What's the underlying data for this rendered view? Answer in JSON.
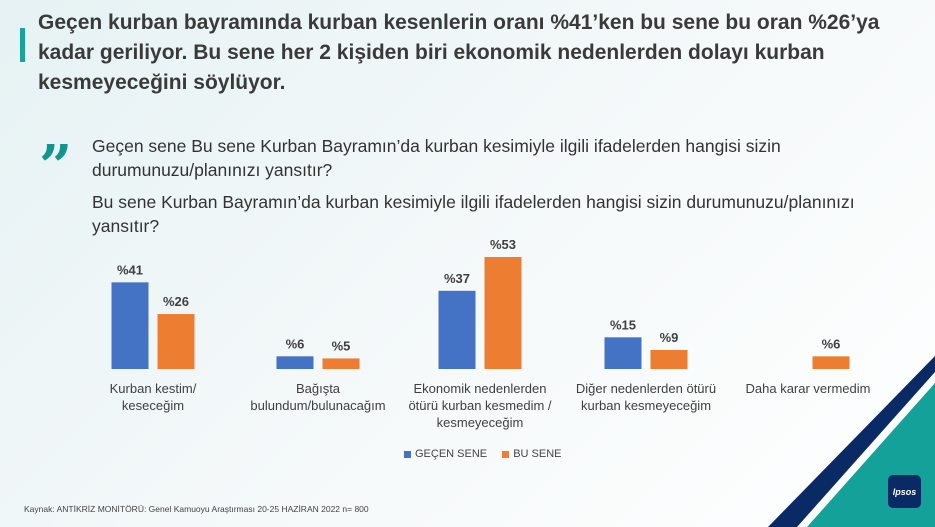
{
  "headline": "Geçen kurban bayramında kurban kesenlerin oranı %41’ken bu sene  bu oran %26’ya kadar geriliyor. Bu sene her 2 kişiden biri ekonomik nedenlerden dolayı kurban kesmeyeceğini söylüyor.",
  "quote_mark": "„",
  "question_1": "Geçen sene Bu sene Kurban Bayramın’da kurban kesimiyle ilgili ifadelerden hangisi sizin durumunuzu/planınızı yansıtır?",
  "question_2": "Bu sene Kurban Bayramın’da kurban kesimiyle ilgili ifadelerden hangisi sizin durumunuzu/planınızı yansıtır?",
  "source": "Kaynak: ANTİKRİZ MONİTÖRÜ: Genel Kamuoyu Araştırması 20-25 HAZİRAN 2022 n= 800",
  "logo_text": "Ipsos",
  "colors": {
    "accent": "#1aa39a",
    "series1": "#4472c4",
    "series2": "#ed7d31",
    "corner_dark": "#0a2a66",
    "corner_teal": "#13a19a"
  },
  "chart_data": {
    "type": "bar",
    "categories": [
      [
        "Kurban kestim/",
        "keseceğim"
      ],
      [
        "Bağışta",
        "bulundum/bulunacağım"
      ],
      [
        "Ekonomik nedenlerden",
        "ötürü kurban kesmedim /",
        "kesmeyeceğim"
      ],
      [
        "Diğer nedenlerden ötürü",
        "kurban kesmeyeceğim"
      ],
      [
        "Daha karar vermedim"
      ]
    ],
    "series": [
      {
        "name": "GEÇEN SENE",
        "values": [
          41,
          6,
          37,
          15,
          null
        ],
        "labels": [
          "%41",
          "%6",
          "%37",
          "%15",
          ""
        ]
      },
      {
        "name": "BU SENE",
        "values": [
          26,
          5,
          53,
          9,
          6
        ],
        "labels": [
          "%26",
          "%5",
          "%53",
          "%9",
          "%6"
        ]
      }
    ],
    "ylim": [
      0,
      60
    ],
    "legend_position": "bottom"
  }
}
